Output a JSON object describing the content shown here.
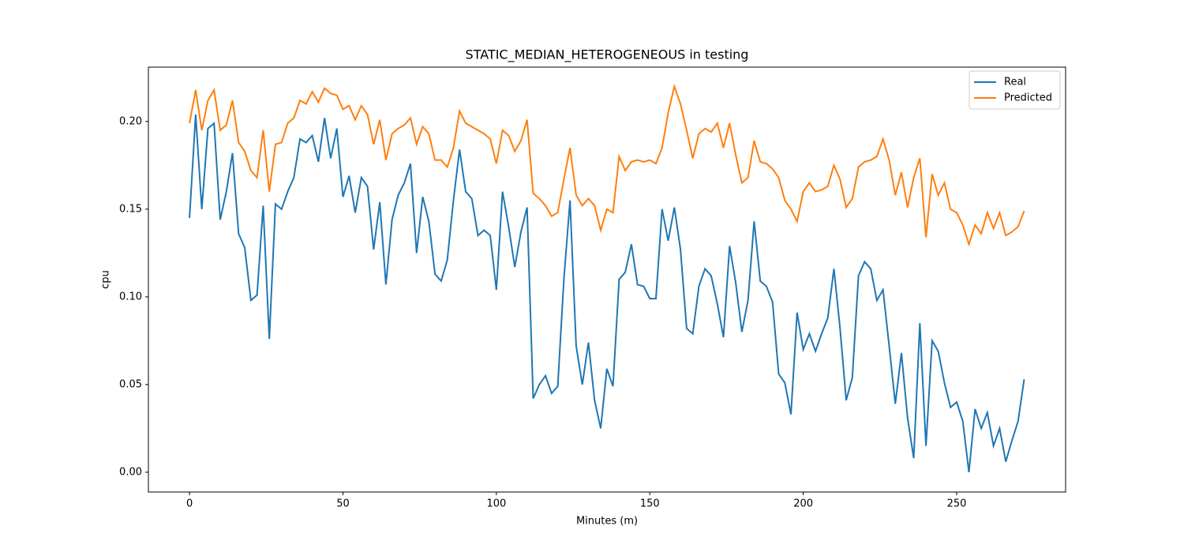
{
  "chart_data": {
    "type": "line",
    "title": "STATIC_MEDIAN_HETEROGENEOUS in testing",
    "x_label": "Minutes (m)",
    "y_label": "cpu",
    "x": [
      0,
      2,
      4,
      6,
      8,
      10,
      12,
      14,
      16,
      18,
      20,
      22,
      24,
      26,
      28,
      30,
      32,
      34,
      36,
      38,
      40,
      42,
      44,
      46,
      48,
      50,
      52,
      54,
      56,
      58,
      60,
      62,
      64,
      66,
      68,
      70,
      72,
      74,
      76,
      78,
      80,
      82,
      84,
      86,
      88,
      90,
      92,
      94,
      96,
      98,
      100,
      102,
      104,
      106,
      108,
      110,
      112,
      114,
      116,
      118,
      120,
      122,
      124,
      126,
      128,
      130,
      132,
      134,
      136,
      138,
      140,
      142,
      144,
      146,
      148,
      150,
      152,
      154,
      156,
      158,
      160,
      162,
      164,
      166,
      168,
      170,
      172,
      174,
      176,
      178,
      180,
      182,
      184,
      186,
      188,
      190,
      192,
      194,
      196,
      198,
      200,
      202,
      204,
      206,
      208,
      210,
      212,
      214,
      216,
      218,
      220,
      222,
      224,
      226,
      228,
      230,
      232,
      234,
      236,
      238,
      240,
      242,
      244,
      246,
      248,
      250,
      252,
      254,
      256,
      258,
      260,
      262,
      264,
      266,
      268,
      270,
      272
    ],
    "series": [
      {
        "name": "Real",
        "color": "#1f77b4",
        "values": [
          0.145,
          0.204,
          0.15,
          0.196,
          0.199,
          0.144,
          0.16,
          0.182,
          0.136,
          0.128,
          0.098,
          0.101,
          0.152,
          0.076,
          0.153,
          0.15,
          0.16,
          0.168,
          0.19,
          0.188,
          0.192,
          0.177,
          0.202,
          0.179,
          0.196,
          0.157,
          0.169,
          0.148,
          0.168,
          0.163,
          0.127,
          0.154,
          0.107,
          0.144,
          0.158,
          0.165,
          0.176,
          0.125,
          0.157,
          0.143,
          0.113,
          0.109,
          0.121,
          0.155,
          0.184,
          0.16,
          0.156,
          0.135,
          0.138,
          0.135,
          0.104,
          0.16,
          0.14,
          0.117,
          0.137,
          0.151,
          0.042,
          0.05,
          0.055,
          0.045,
          0.049,
          0.11,
          0.155,
          0.072,
          0.05,
          0.074,
          0.041,
          0.025,
          0.059,
          0.049,
          0.11,
          0.114,
          0.13,
          0.107,
          0.106,
          0.099,
          0.099,
          0.15,
          0.132,
          0.151,
          0.127,
          0.082,
          0.079,
          0.106,
          0.116,
          0.112,
          0.096,
          0.077,
          0.129,
          0.108,
          0.08,
          0.098,
          0.143,
          0.109,
          0.106,
          0.097,
          0.056,
          0.051,
          0.033,
          0.091,
          0.07,
          0.079,
          0.069,
          0.079,
          0.088,
          0.116,
          0.082,
          0.041,
          0.054,
          0.112,
          0.12,
          0.116,
          0.098,
          0.104,
          0.072,
          0.039,
          0.068,
          0.031,
          0.008,
          0.085,
          0.015,
          0.075,
          0.069,
          0.051,
          0.037,
          0.04,
          0.029,
          0.0,
          0.036,
          0.025,
          0.034,
          0.015,
          0.025,
          0.006,
          0.018,
          0.029,
          0.053
        ]
      },
      {
        "name": "Predicted",
        "color": "#ff7f0e",
        "values": [
          0.199,
          0.218,
          0.195,
          0.212,
          0.218,
          0.195,
          0.198,
          0.212,
          0.188,
          0.183,
          0.172,
          0.168,
          0.195,
          0.16,
          0.187,
          0.188,
          0.199,
          0.202,
          0.212,
          0.21,
          0.217,
          0.211,
          0.219,
          0.216,
          0.215,
          0.207,
          0.209,
          0.201,
          0.209,
          0.204,
          0.187,
          0.201,
          0.178,
          0.193,
          0.196,
          0.198,
          0.202,
          0.187,
          0.197,
          0.193,
          0.178,
          0.178,
          0.174,
          0.185,
          0.206,
          0.199,
          0.197,
          0.195,
          0.193,
          0.19,
          0.176,
          0.195,
          0.192,
          0.183,
          0.189,
          0.201,
          0.159,
          0.156,
          0.152,
          0.146,
          0.148,
          0.167,
          0.185,
          0.158,
          0.152,
          0.156,
          0.152,
          0.138,
          0.15,
          0.148,
          0.18,
          0.172,
          0.177,
          0.178,
          0.177,
          0.178,
          0.176,
          0.185,
          0.205,
          0.22,
          0.21,
          0.195,
          0.179,
          0.193,
          0.196,
          0.194,
          0.199,
          0.185,
          0.199,
          0.181,
          0.165,
          0.168,
          0.189,
          0.177,
          0.176,
          0.173,
          0.168,
          0.155,
          0.15,
          0.143,
          0.16,
          0.165,
          0.16,
          0.161,
          0.163,
          0.175,
          0.167,
          0.151,
          0.156,
          0.174,
          0.177,
          0.178,
          0.18,
          0.19,
          0.178,
          0.158,
          0.171,
          0.151,
          0.168,
          0.179,
          0.134,
          0.17,
          0.158,
          0.165,
          0.15,
          0.148,
          0.141,
          0.13,
          0.141,
          0.136,
          0.148,
          0.139,
          0.148,
          0.135,
          0.137,
          0.14,
          0.149
        ]
      }
    ],
    "xlim": [
      -13.4,
      285.5
    ],
    "ylim": [
      -0.0113,
      0.231
    ],
    "xticks": [
      0,
      50,
      100,
      150,
      200,
      250
    ],
    "yticks": [
      {
        "value": 0,
        "label": "0.00"
      },
      0.05,
      {
        "value": 0.1,
        "label": "0.10"
      },
      0.15,
      {
        "value": 0.2,
        "label": "0.20"
      }
    ],
    "grid": false,
    "legend": "upper right"
  }
}
